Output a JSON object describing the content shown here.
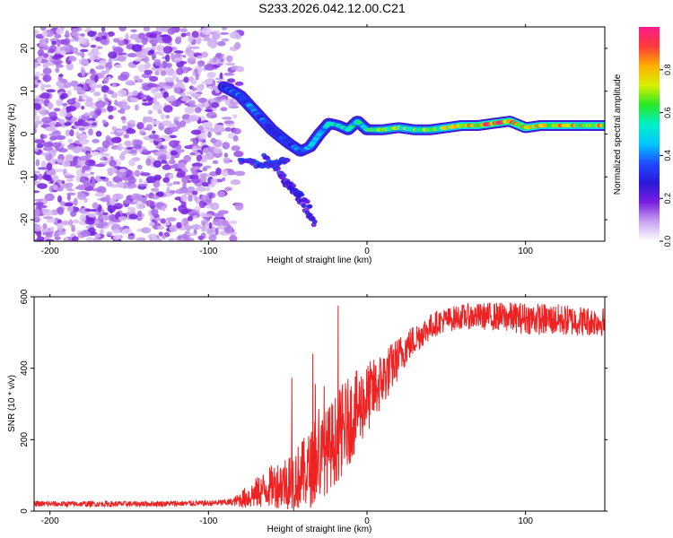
{
  "figure_title": "S233.2026.042.12.00.C21",
  "chart_data": [
    {
      "type": "heatmap",
      "xlabel": "Height of straight line (km)",
      "ylabel": "Frequency (Hz)",
      "xlim": [
        -210,
        150
      ],
      "ylim": [
        -25,
        25
      ],
      "xticks": [
        -200,
        -100,
        0,
        100
      ],
      "yticks": [
        -20,
        -10,
        0,
        10,
        20
      ],
      "colorbar": {
        "label": "Normalized spectral amplitude",
        "range": [
          0,
          1
        ],
        "ticks": [
          "0.0",
          "0.2",
          "0.4",
          "0.6",
          "0.8"
        ],
        "tick_values": [
          0.0,
          0.2,
          0.4,
          0.6,
          0.8
        ],
        "colors": [
          "#ffffff",
          "#c9a3f0",
          "#7a1fe0",
          "#2b18d8",
          "#1e4cff",
          "#00c8ff",
          "#00f0c8",
          "#27e827",
          "#d8f000",
          "#ffb000",
          "#ff3a3a",
          "#ff1a8c"
        ]
      },
      "noise_region_x": [
        -210,
        -85
      ],
      "ridge": {
        "x": [
          -90,
          -80,
          -70,
          -60,
          -50,
          -42,
          -36,
          -30,
          -24,
          -18,
          -12,
          -6,
          0,
          10,
          20,
          30,
          40,
          50,
          60,
          70,
          80,
          90,
          100,
          110,
          120,
          130,
          140,
          150
        ],
        "freq": [
          11,
          9,
          5,
          1,
          -2,
          -4,
          -3,
          0,
          2.5,
          2,
          1,
          3,
          1,
          1,
          1.5,
          1,
          1,
          1.5,
          2,
          2,
          2.5,
          3,
          1.5,
          2,
          2,
          2,
          2,
          2
        ],
        "value": [
          0.3,
          0.35,
          0.35,
          0.3,
          0.3,
          0.35,
          0.4,
          0.4,
          0.45,
          0.5,
          0.5,
          0.5,
          0.5,
          0.6,
          0.6,
          0.6,
          0.6,
          0.65,
          0.7,
          0.75,
          0.8,
          0.8,
          0.75,
          0.7,
          0.75,
          0.7,
          0.7,
          0.7
        ]
      },
      "branches": [
        {
          "x": [
            -80,
            -70,
            -60,
            -50
          ],
          "freq": [
            -6,
            -7,
            -7,
            -6
          ],
          "value": 0.3
        },
        {
          "x": [
            -65,
            -55,
            -45,
            -36
          ],
          "freq": [
            -5,
            -9,
            -13,
            -17
          ],
          "value": 0.3
        },
        {
          "x": [
            -55,
            -45,
            -38,
            -33
          ],
          "freq": [
            -10,
            -14,
            -18,
            -21
          ],
          "value": 0.25
        }
      ]
    },
    {
      "type": "line",
      "xlabel": "Height of straight line (km)",
      "ylabel": "SNR (10 * v/v)",
      "xlim": [
        -210,
        150
      ],
      "ylim": [
        0,
        600
      ],
      "xticks": [
        -200,
        -100,
        0,
        100
      ],
      "yticks": [
        0,
        200,
        400,
        600
      ],
      "series": [
        {
          "name": "SNR",
          "color": "#ee2222",
          "trend_x": [
            -210,
            -150,
            -100,
            -85,
            -75,
            -60,
            -45,
            -35,
            -25,
            -15,
            -5,
            5,
            15,
            25,
            35,
            45,
            60,
            80,
            100,
            120,
            150
          ],
          "trend_y": [
            20,
            20,
            22,
            25,
            40,
            70,
            90,
            120,
            170,
            230,
            290,
            340,
            400,
            460,
            500,
            530,
            545,
            545,
            540,
            535,
            530
          ],
          "spread": [
            8,
            8,
            8,
            10,
            35,
            60,
            90,
            110,
            120,
            130,
            110,
            90,
            70,
            50,
            40,
            35,
            35,
            40,
            45,
            45,
            40
          ]
        }
      ]
    }
  ]
}
